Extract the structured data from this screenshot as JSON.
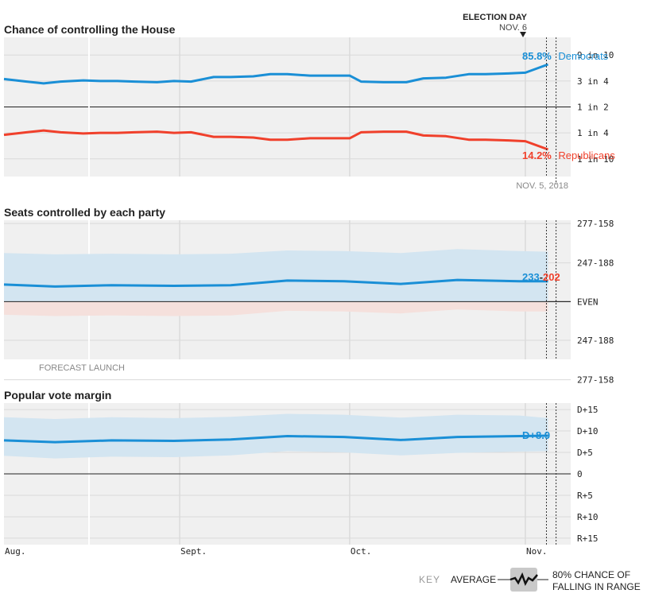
{
  "colors": {
    "dem": "#1a8fd6",
    "rep": "#f0402b",
    "panel_bg": "#f0f0f0",
    "band_dem": "#d3e5f1",
    "band_rep": "#f5e0dc",
    "grid": "#d0d0d0",
    "text": "#222222",
    "muted": "#888888"
  },
  "election_day": {
    "label": "ELECTION DAY",
    "date": "NOV. 6"
  },
  "forecast_launch_label": "FORECAST LAUNCH",
  "x_axis": {
    "ticks": [
      "Aug.",
      "Sept.",
      "Oct.",
      "Nov."
    ],
    "range": [
      "2018-08-01",
      "2018-11-09"
    ],
    "forecast_launch": "2018-08-16",
    "today": "2018-11-05",
    "election_day": "2018-11-06"
  },
  "chart_data": [
    {
      "type": "line",
      "title": "Chance of controlling the House",
      "ylim": [
        0.05,
        0.95
      ],
      "scale": "logit",
      "y_ticks": [
        {
          "label": "9 in 10",
          "value": 0.9,
          "color": "muted"
        },
        {
          "label": "3 in 4",
          "value": 0.75,
          "color": "muted"
        },
        {
          "label": "1 in 2",
          "value": 0.5,
          "color": "text"
        },
        {
          "label": "1 in 4",
          "value": 0.25,
          "color": "muted"
        },
        {
          "label": "1 in 10",
          "value": 0.1,
          "color": "muted"
        }
      ],
      "date_label": "NOV. 5, 2018",
      "series": [
        {
          "name": "Democrats",
          "color": "dem",
          "end_label": "85.8%",
          "x": [
            "2018-08-01",
            "2018-08-05",
            "2018-08-08",
            "2018-08-11",
            "2018-08-15",
            "2018-08-18",
            "2018-08-21",
            "2018-08-24",
            "2018-08-28",
            "2018-08-31",
            "2018-09-03",
            "2018-09-07",
            "2018-09-10",
            "2018-09-14",
            "2018-09-17",
            "2018-09-20",
            "2018-09-24",
            "2018-09-28",
            "2018-10-01",
            "2018-10-03",
            "2018-10-07",
            "2018-10-11",
            "2018-10-14",
            "2018-10-18",
            "2018-10-22",
            "2018-10-25",
            "2018-10-29",
            "2018-11-01",
            "2018-11-05"
          ],
          "values": [
            0.765,
            0.745,
            0.73,
            0.745,
            0.755,
            0.75,
            0.75,
            0.745,
            0.74,
            0.75,
            0.745,
            0.78,
            0.78,
            0.785,
            0.8,
            0.8,
            0.79,
            0.79,
            0.79,
            0.745,
            0.74,
            0.74,
            0.77,
            0.775,
            0.8,
            0.8,
            0.805,
            0.81,
            0.858
          ]
        },
        {
          "name": "Republicans",
          "color": "rep",
          "end_label": "14.2%",
          "x": [
            "2018-08-01",
            "2018-08-05",
            "2018-08-08",
            "2018-08-11",
            "2018-08-15",
            "2018-08-18",
            "2018-08-21",
            "2018-08-24",
            "2018-08-28",
            "2018-08-31",
            "2018-09-03",
            "2018-09-07",
            "2018-09-10",
            "2018-09-14",
            "2018-09-17",
            "2018-09-20",
            "2018-09-24",
            "2018-09-28",
            "2018-10-01",
            "2018-10-03",
            "2018-10-07",
            "2018-10-11",
            "2018-10-14",
            "2018-10-18",
            "2018-10-22",
            "2018-10-25",
            "2018-10-29",
            "2018-11-01",
            "2018-11-05"
          ],
          "values": [
            0.235,
            0.255,
            0.27,
            0.255,
            0.245,
            0.25,
            0.25,
            0.255,
            0.26,
            0.25,
            0.255,
            0.22,
            0.22,
            0.215,
            0.2,
            0.2,
            0.21,
            0.21,
            0.21,
            0.255,
            0.26,
            0.26,
            0.23,
            0.225,
            0.2,
            0.2,
            0.195,
            0.19,
            0.142
          ]
        }
      ]
    },
    {
      "type": "area",
      "title": "Seats controlled by each party",
      "ylim": [
        -44,
        62
      ],
      "y_ticks": [
        {
          "label": "277-158",
          "value": 59.5,
          "color": "dem"
        },
        {
          "label": "247-188",
          "value": 29.5,
          "color": "dem"
        },
        {
          "label": "EVEN",
          "value": 0,
          "color": "text"
        },
        {
          "label": "247-188",
          "value": -29.5,
          "color": "rep"
        },
        {
          "label": "277-158",
          "value": -59.5,
          "color": "rep"
        }
      ],
      "end_label": {
        "dem": "233",
        "sep": "-",
        "rep": "202"
      },
      "x": [
        "2018-08-01",
        "2018-08-10",
        "2018-08-20",
        "2018-08-31",
        "2018-09-10",
        "2018-09-20",
        "2018-09-30",
        "2018-10-10",
        "2018-10-20",
        "2018-10-31",
        "2018-11-05"
      ],
      "values": [
        13,
        11.5,
        12.5,
        12,
        12.5,
        16,
        15.5,
        13.5,
        16.5,
        15.5,
        15.5
      ],
      "band_high": [
        37,
        36,
        36.5,
        36,
        36.5,
        39,
        38.5,
        37,
        40,
        38.5,
        38
      ],
      "band_low": [
        -10,
        -11,
        -10.5,
        -11,
        -10.5,
        -7,
        -7.5,
        -9,
        -6,
        -7.5,
        -7.5
      ]
    },
    {
      "type": "area",
      "title": "Popular vote margin",
      "ylim": [
        -16.5,
        16.5
      ],
      "y_ticks": [
        {
          "label": "D+15",
          "value": 15,
          "color": "dem"
        },
        {
          "label": "D+10",
          "value": 10,
          "color": "dem"
        },
        {
          "label": "D+5",
          "value": 5,
          "color": "dem"
        },
        {
          "label": "0",
          "value": 0,
          "color": "text"
        },
        {
          "label": "R+5",
          "value": -5,
          "color": "rep"
        },
        {
          "label": "R+10",
          "value": -10,
          "color": "rep"
        },
        {
          "label": "R+15",
          "value": -15,
          "color": "rep"
        }
      ],
      "end_label": "D+8.9",
      "x": [
        "2018-08-01",
        "2018-08-10",
        "2018-08-20",
        "2018-08-31",
        "2018-09-10",
        "2018-09-20",
        "2018-09-30",
        "2018-10-10",
        "2018-10-20",
        "2018-10-31",
        "2018-11-05"
      ],
      "values": [
        7.8,
        7.4,
        7.8,
        7.7,
        8.0,
        8.8,
        8.6,
        7.9,
        8.6,
        8.8,
        8.9
      ],
      "band_high": [
        13.2,
        12.8,
        13.2,
        13.0,
        13.3,
        14.0,
        13.8,
        13.1,
        13.8,
        13.6,
        13.0
      ],
      "band_low": [
        4.2,
        3.6,
        4.0,
        3.9,
        4.3,
        5.3,
        5.0,
        4.3,
        4.9,
        5.2,
        5.3
      ]
    }
  ],
  "key": {
    "label": "KEY",
    "average": "AVERAGE",
    "range_line1": "80% CHANCE OF",
    "range_line2": "FALLING IN RANGE"
  }
}
